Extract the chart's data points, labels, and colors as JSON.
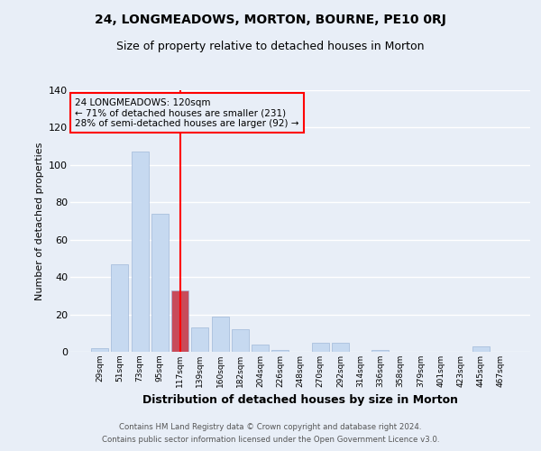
{
  "title": "24, LONGMEADOWS, MORTON, BOURNE, PE10 0RJ",
  "subtitle": "Size of property relative to detached houses in Morton",
  "xlabel": "Distribution of detached houses by size in Morton",
  "ylabel": "Number of detached properties",
  "categories": [
    "29sqm",
    "51sqm",
    "73sqm",
    "95sqm",
    "117sqm",
    "139sqm",
    "160sqm",
    "182sqm",
    "204sqm",
    "226sqm",
    "248sqm",
    "270sqm",
    "292sqm",
    "314sqm",
    "336sqm",
    "358sqm",
    "379sqm",
    "401sqm",
    "423sqm",
    "445sqm",
    "467sqm"
  ],
  "values": [
    2,
    47,
    107,
    74,
    33,
    13,
    19,
    12,
    4,
    1,
    0,
    5,
    5,
    0,
    1,
    0,
    0,
    0,
    0,
    3,
    0
  ],
  "bar_color": "#c6d9f0",
  "bar_color_highlight": "#c84b5a",
  "highlight_index": 4,
  "annotation_text": "24 LONGMEADOWS: 120sqm\n← 71% of detached houses are smaller (231)\n28% of semi-detached houses are larger (92) →",
  "ylim": [
    0,
    140
  ],
  "yticks": [
    0,
    20,
    40,
    60,
    80,
    100,
    120,
    140
  ],
  "footer_line1": "Contains HM Land Registry data © Crown copyright and database right 2024.",
  "footer_line2": "Contains public sector information licensed under the Open Government Licence v3.0.",
  "bg_color": "#e8eef7",
  "grid_color": "#ffffff",
  "title_fontsize": 10,
  "subtitle_fontsize": 9,
  "xlabel_fontsize": 9,
  "ylabel_fontsize": 8
}
